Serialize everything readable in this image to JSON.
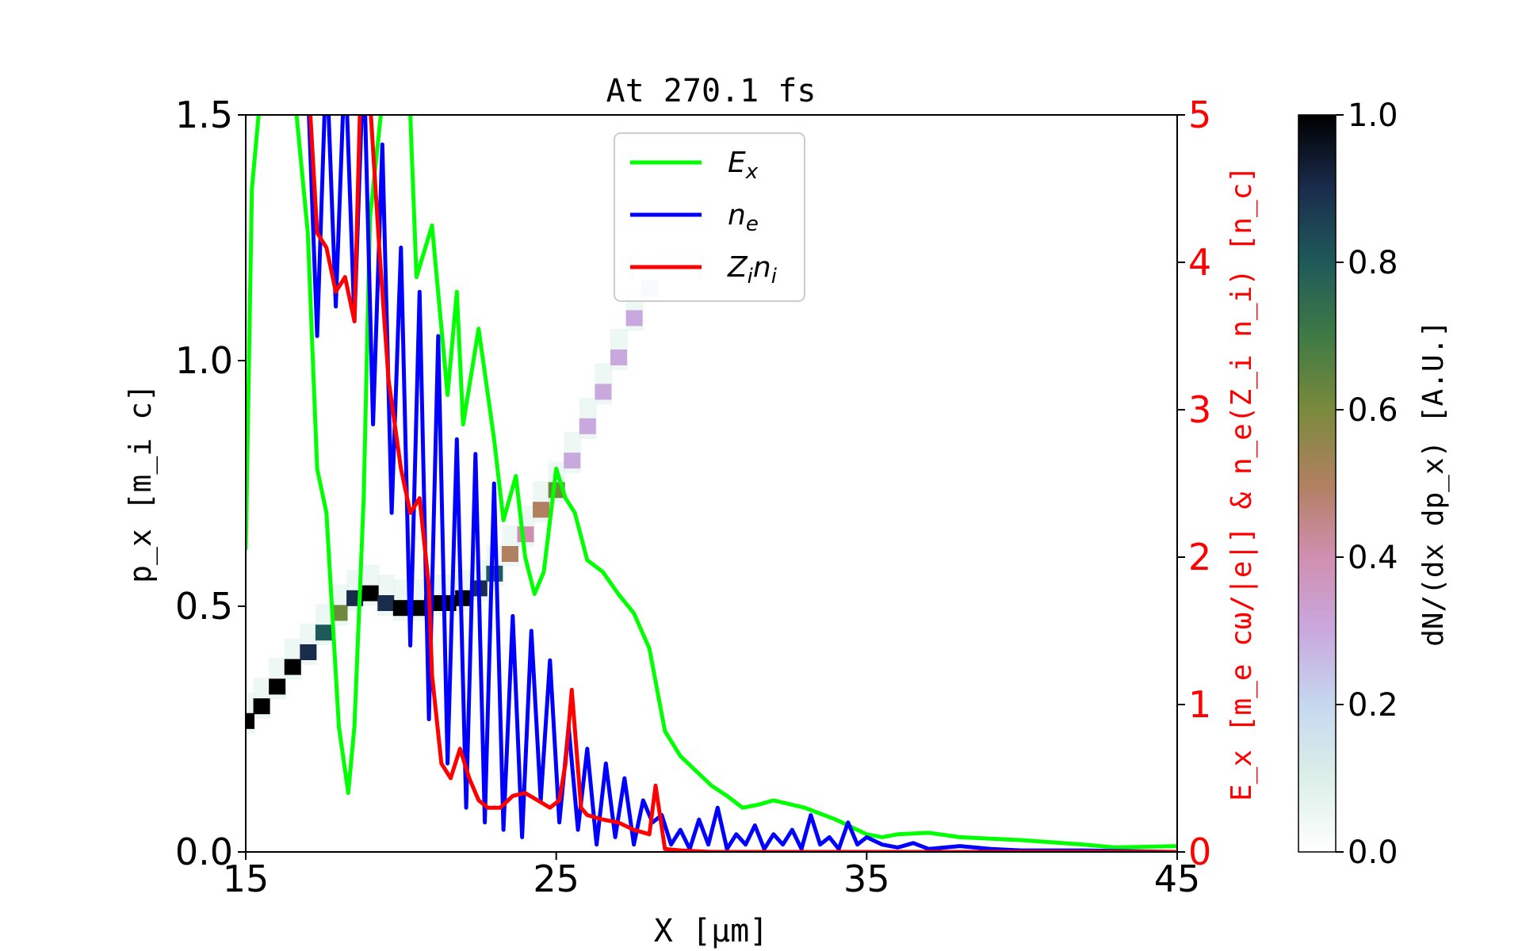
{
  "chart_data": {
    "type": "heatmap",
    "title": "At 270.1 fs",
    "xlabel": "X [μm]",
    "ylabel_left": "p_x [m_i c]",
    "ylabel_right": "E_x [m_e cω/|e|] & n_e(Z_i n_i) [n_c]",
    "colorbar_label": "dN/(dx dp_x) [A.U.]",
    "xlim": [
      15,
      45
    ],
    "ylim_left": [
      0,
      1.5
    ],
    "ylim_right": [
      0,
      5
    ],
    "clim": [
      0,
      1
    ],
    "x_ticks": [
      "15",
      "25",
      "35",
      "45"
    ],
    "y_left_ticks": [
      "0.0",
      "0.5",
      "1.0",
      "1.5"
    ],
    "y_right_ticks": [
      "0",
      "1",
      "2",
      "3",
      "4",
      "5"
    ],
    "colorbar_ticks": [
      "0.0",
      "0.2",
      "0.4",
      "0.6",
      "0.8",
      "1.0"
    ],
    "colormap": "cubehelix_r",
    "legend_position": "upper-center",
    "right_axis_color": "#ff0000",
    "phase_space": [
      {
        "x": 15.0,
        "p": 0.26,
        "density": 1.0
      },
      {
        "x": 15.5,
        "p": 0.29,
        "density": 1.0
      },
      {
        "x": 16.0,
        "p": 0.33,
        "density": 1.0
      },
      {
        "x": 16.5,
        "p": 0.37,
        "density": 1.0
      },
      {
        "x": 17.0,
        "p": 0.4,
        "density": 0.95
      },
      {
        "x": 17.5,
        "p": 0.44,
        "density": 0.8
      },
      {
        "x": 18.0,
        "p": 0.48,
        "density": 0.7
      },
      {
        "x": 18.5,
        "p": 0.51,
        "density": 0.9
      },
      {
        "x": 19.0,
        "p": 0.52,
        "density": 1.0
      },
      {
        "x": 19.5,
        "p": 0.5,
        "density": 0.9
      },
      {
        "x": 20.0,
        "p": 0.49,
        "density": 1.0
      },
      {
        "x": 20.5,
        "p": 0.49,
        "density": 1.0
      },
      {
        "x": 21.0,
        "p": 0.5,
        "density": 1.0
      },
      {
        "x": 21.5,
        "p": 0.5,
        "density": 1.0
      },
      {
        "x": 22.0,
        "p": 0.51,
        "density": 1.0
      },
      {
        "x": 22.5,
        "p": 0.53,
        "density": 0.95
      },
      {
        "x": 23.0,
        "p": 0.56,
        "density": 0.8
      },
      {
        "x": 23.5,
        "p": 0.6,
        "density": 0.6
      },
      {
        "x": 24.0,
        "p": 0.64,
        "density": 0.5
      },
      {
        "x": 24.5,
        "p": 0.69,
        "density": 0.6
      },
      {
        "x": 25.0,
        "p": 0.73,
        "density": 0.75
      },
      {
        "x": 25.5,
        "p": 0.79,
        "density": 0.4
      },
      {
        "x": 26.0,
        "p": 0.86,
        "density": 0.35
      },
      {
        "x": 26.5,
        "p": 0.93,
        "density": 0.35
      },
      {
        "x": 27.0,
        "p": 1.0,
        "density": 0.4
      },
      {
        "x": 27.5,
        "p": 1.08,
        "density": 0.35
      },
      {
        "x": 28.0,
        "p": 1.14,
        "density": 0.3
      }
    ],
    "series": [
      {
        "name": "E_x",
        "color": "#00ff00",
        "x": [
          15.0,
          15.2,
          15.5,
          16.0,
          16.5,
          17.0,
          17.3,
          17.6,
          18.0,
          18.3,
          18.5,
          18.8,
          19.0,
          19.5,
          20.0,
          20.3,
          20.5,
          21.0,
          21.5,
          21.8,
          22.0,
          22.5,
          23.0,
          23.3,
          23.7,
          24.0,
          24.3,
          24.6,
          25.0,
          25.3,
          25.6,
          26.0,
          26.5,
          27.0,
          27.5,
          28.0,
          28.5,
          29.0,
          29.5,
          30.0,
          30.5,
          31.0,
          31.5,
          32.0,
          33.0,
          34.0,
          35.0,
          35.5,
          36.0,
          37.0,
          38.0,
          40.0,
          42.0,
          43.0,
          45.0
        ],
        "y": [
          2.05,
          4.5,
          5.2,
          5.3,
          5.3,
          4.2,
          2.6,
          2.3,
          0.85,
          0.4,
          0.85,
          2.4,
          4.3,
          5.3,
          5.1,
          5.0,
          3.9,
          4.25,
          3.1,
          3.8,
          2.9,
          3.55,
          2.8,
          2.25,
          2.55,
          2.0,
          1.75,
          1.9,
          2.6,
          2.4,
          2.3,
          1.98,
          1.9,
          1.75,
          1.62,
          1.38,
          0.82,
          0.65,
          0.55,
          0.45,
          0.38,
          0.3,
          0.32,
          0.35,
          0.3,
          0.22,
          0.12,
          0.1,
          0.12,
          0.13,
          0.1,
          0.08,
          0.05,
          0.03,
          0.04
        ]
      },
      {
        "name": "n_e",
        "color": "#0000ff",
        "x": [
          17.0,
          17.3,
          17.6,
          17.9,
          18.2,
          18.5,
          18.8,
          19.1,
          19.4,
          19.7,
          20.0,
          20.3,
          20.6,
          20.9,
          21.2,
          21.5,
          21.8,
          22.1,
          22.4,
          22.7,
          23.0,
          23.3,
          23.6,
          23.9,
          24.2,
          24.5,
          24.8,
          25.1,
          25.4,
          25.7,
          26.0,
          26.3,
          26.6,
          26.9,
          27.2,
          27.5,
          27.8,
          28.1,
          28.4,
          28.7,
          29.0,
          29.3,
          29.6,
          29.9,
          30.2,
          30.5,
          30.8,
          31.1,
          31.4,
          31.7,
          32.0,
          32.3,
          32.6,
          32.9,
          33.2,
          33.5,
          33.8,
          34.1,
          34.4,
          34.7,
          35.0,
          35.5,
          36.0,
          36.5,
          37.0,
          38.0,
          39.0,
          40.0,
          42.0,
          45.0
        ],
        "y": [
          5.2,
          3.5,
          5.4,
          3.7,
          5.4,
          3.6,
          5.4,
          2.9,
          4.8,
          2.3,
          4.1,
          1.4,
          3.8,
          0.9,
          3.5,
          0.6,
          2.8,
          0.3,
          2.7,
          0.2,
          2.5,
          0.15,
          1.6,
          0.1,
          1.5,
          0.35,
          1.3,
          0.2,
          0.85,
          0.15,
          0.7,
          0.05,
          0.6,
          0.1,
          0.5,
          0.05,
          0.35,
          0.2,
          0.25,
          0.05,
          0.15,
          0.02,
          0.22,
          0.05,
          0.3,
          0.02,
          0.12,
          0.05,
          0.18,
          0.02,
          0.12,
          0.05,
          0.15,
          0.02,
          0.25,
          0.05,
          0.1,
          0.02,
          0.2,
          0.05,
          0.1,
          0.05,
          0.03,
          0.06,
          0.02,
          0.04,
          0.02,
          0.01,
          0.01,
          0.0
        ]
      },
      {
        "name": "Z_i n_i",
        "color": "#ff0000",
        "x": [
          17.0,
          17.3,
          17.6,
          17.9,
          18.2,
          18.5,
          18.7,
          19.0,
          19.3,
          19.6,
          20.0,
          20.3,
          20.6,
          20.9,
          21.0,
          21.3,
          21.6,
          21.9,
          22.2,
          22.5,
          22.8,
          23.2,
          23.6,
          24.0,
          24.4,
          24.8,
          25.1,
          25.3,
          25.5,
          25.8,
          26.0,
          26.5,
          27.0,
          27.5,
          28.0,
          28.2,
          28.5,
          29.0,
          30.0,
          35.0,
          40.0,
          45.0
        ],
        "y": [
          5.3,
          4.2,
          4.1,
          3.8,
          3.9,
          3.6,
          5.2,
          5.1,
          4.1,
          3.2,
          2.6,
          2.3,
          2.4,
          1.8,
          1.2,
          0.6,
          0.5,
          0.7,
          0.5,
          0.35,
          0.3,
          0.3,
          0.38,
          0.4,
          0.35,
          0.3,
          0.35,
          0.6,
          1.1,
          0.3,
          0.25,
          0.22,
          0.2,
          0.15,
          0.12,
          0.45,
          0.02,
          0.01,
          0.0,
          0.0,
          0.0,
          0.0
        ]
      }
    ],
    "legend": [
      {
        "label_main": "E",
        "label_sub": "x",
        "color": "#00ff00"
      },
      {
        "label_main": "n",
        "label_sub": "e",
        "color": "#0000ff"
      },
      {
        "label_main": "Z",
        "label_sub": "i",
        "label_main2": "n",
        "label_sub2": "i",
        "color": "#ff0000"
      }
    ]
  }
}
